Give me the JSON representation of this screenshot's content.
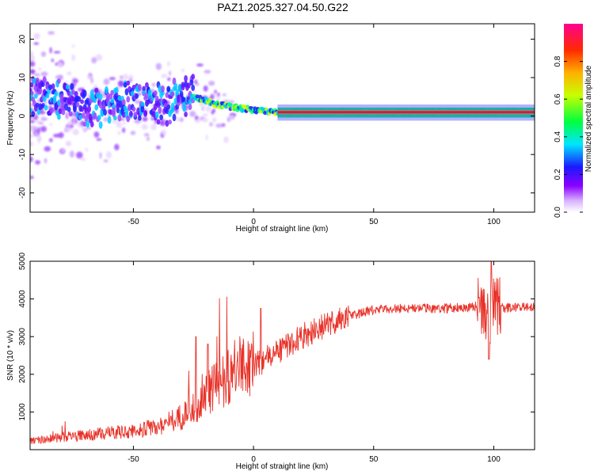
{
  "title": "PAZ1.2025.327.04.50.G22",
  "chart_data": [
    {
      "type": "heatmap",
      "name": "spectrogram",
      "xlabel": "Height of straight line (km)",
      "ylabel": "Frequency (Hz)",
      "xlim": [
        -93,
        117
      ],
      "ylim": [
        -25,
        24
      ],
      "xticks": [
        -50,
        0,
        50,
        100
      ],
      "xtick_labels": [
        "-50",
        "0",
        "50",
        "100"
      ],
      "yticks": [
        -20,
        -10,
        0,
        10,
        20
      ],
      "ytick_labels": [
        "-20",
        "-10",
        "0",
        "10",
        "20"
      ],
      "ridge": [
        {
          "x": -88,
          "y": 5
        },
        {
          "x": -80,
          "y": 4
        },
        {
          "x": -70,
          "y": 2
        },
        {
          "x": -60,
          "y": 3
        },
        {
          "x": -50,
          "y": 4
        },
        {
          "x": -40,
          "y": 3
        },
        {
          "x": -30,
          "y": 4
        },
        {
          "x": -25,
          "y": 5
        },
        {
          "x": -15,
          "y": 3
        },
        {
          "x": -5,
          "y": 2
        },
        {
          "x": 0,
          "y": 1.5
        },
        {
          "x": 10,
          "y": 1
        },
        {
          "x": 20,
          "y": 1
        },
        {
          "x": 50,
          "y": 1
        },
        {
          "x": 85,
          "y": 1
        },
        {
          "x": 100,
          "y": 1
        },
        {
          "x": 117,
          "y": 1.2
        }
      ]
    },
    {
      "type": "line",
      "name": "snr",
      "xlabel": "Height of straight line (km)",
      "ylabel": "SNR (10 * v/v)",
      "xlim": [
        -93,
        117
      ],
      "ylim": [
        0,
        5000
      ],
      "xticks": [
        -50,
        0,
        50,
        100
      ],
      "xtick_labels": [
        "-50",
        "0",
        "50",
        "100"
      ],
      "yticks": [
        1000,
        2000,
        3000,
        4000,
        5000
      ],
      "ytick_labels": [
        "1000",
        "2000",
        "3000",
        "4000",
        "5000"
      ],
      "series": [
        {
          "name": "SNR",
          "color": "#e8332a",
          "trend_x": [
            -93,
            -80,
            -60,
            -50,
            -40,
            -30,
            -20,
            -15,
            -10,
            -5,
            0,
            5,
            10,
            15,
            20,
            30,
            40,
            50,
            60,
            70,
            80,
            90,
            95,
            98,
            100,
            105,
            117
          ],
          "trend_y": [
            200,
            300,
            400,
            450,
            550,
            800,
            1300,
            1600,
            1800,
            2000,
            2200,
            2400,
            2600,
            2800,
            3000,
            3300,
            3550,
            3700,
            3750,
            3750,
            3750,
            3800,
            3800,
            3500,
            3800,
            3750,
            3800
          ]
        }
      ]
    }
  ],
  "colorbar": {
    "label": "Normalized spectral amplitude",
    "ticks": [
      0.0,
      0.2,
      0.4,
      0.6,
      0.8
    ],
    "tick_labels": [
      "0.0",
      "0.2",
      "0.4",
      "0.6",
      "0.8"
    ],
    "range": [
      0,
      1
    ],
    "colors": [
      "#ffffff",
      "#8a00ff",
      "#1a1aff",
      "#00e5ff",
      "#00ff40",
      "#c8ff00",
      "#ffb000",
      "#ff2a00",
      "#ff0090"
    ]
  }
}
